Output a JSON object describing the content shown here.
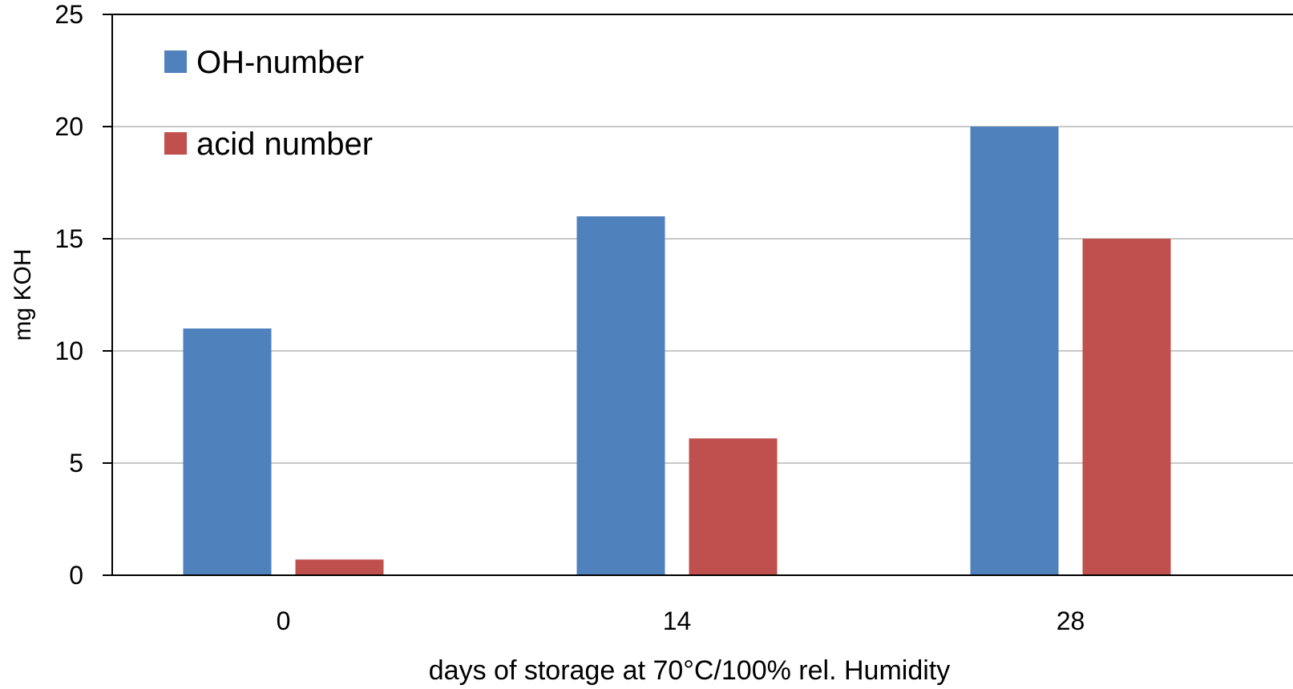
{
  "chart_data": {
    "type": "bar",
    "categories": [
      "0",
      "14",
      "28"
    ],
    "series": [
      {
        "name": "OH-number",
        "values": [
          11,
          16,
          20
        ],
        "color": "#4f81bd"
      },
      {
        "name": "acid number",
        "values": [
          0.7,
          6.1,
          15
        ],
        "color": "#c0504d"
      }
    ],
    "title": "",
    "xlabel": "days of storage at 70°C/100% rel. Humidity",
    "ylabel": "mg KOH",
    "ylim": [
      0,
      25
    ],
    "yticks": [
      "0",
      "5",
      "10",
      "15",
      "20",
      "25"
    ],
    "grid": true,
    "legend_position": "top-left"
  }
}
